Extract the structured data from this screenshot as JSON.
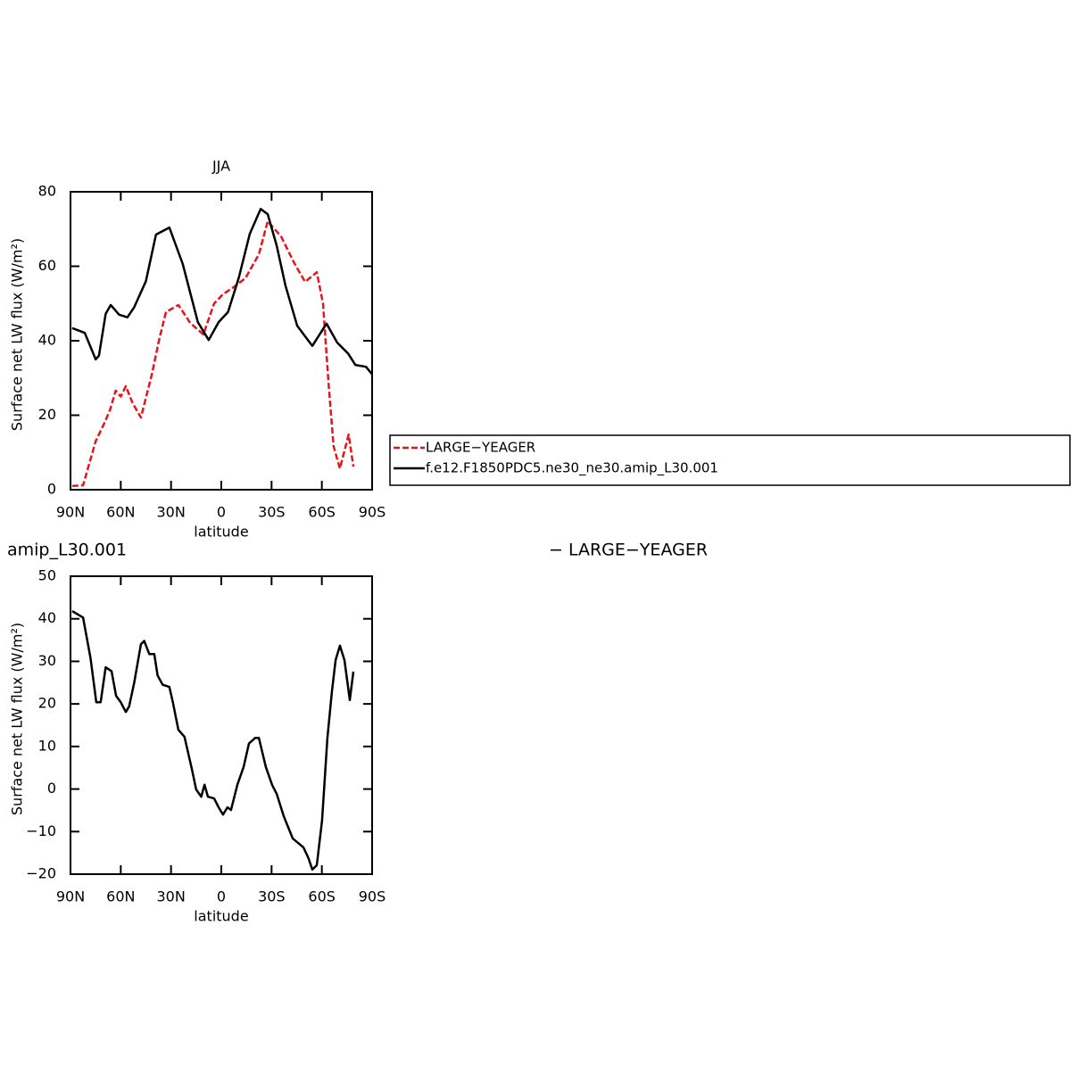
{
  "chart_data": [
    {
      "type": "line",
      "title": "JJA",
      "xlabel": "latitude",
      "ylabel": "Surface net LW flux (W/m²)",
      "xlim": [
        90,
        -90
      ],
      "ylim": [
        0,
        80
      ],
      "xticks": [
        {
          "value": 90,
          "label": "90N"
        },
        {
          "value": 60,
          "label": "60N"
        },
        {
          "value": 30,
          "label": "30N"
        },
        0,
        {
          "value": -30,
          "label": "30S"
        },
        {
          "value": -60,
          "label": "60S"
        },
        {
          "value": -90,
          "label": "90S"
        }
      ],
      "yticks": [
        0,
        20,
        40,
        60,
        80
      ],
      "legend": "right",
      "series": [
        {
          "name": "LARGE−YEAGER",
          "color": "#e8141c",
          "dashed": true,
          "x": [
            89,
            82.5,
            75,
            70,
            66.5,
            63,
            60,
            57,
            53,
            48,
            41.5,
            37,
            33,
            25.6,
            18.6,
            10.7,
            4.3,
            -1,
            -7.4,
            -14.4,
            -22.4,
            -27.7,
            -35.7,
            -43.6,
            -50,
            -57,
            -60.7,
            -64,
            -67,
            -70.8,
            -76,
            -78.8
          ],
          "values": [
            1,
            1.2,
            13,
            17.7,
            21.3,
            26.6,
            25,
            27.8,
            23.3,
            19.4,
            30.9,
            40.5,
            47.7,
            49.6,
            44.8,
            41.7,
            50,
            52.5,
            54.4,
            56.8,
            63.2,
            72.1,
            68,
            60.8,
            55.8,
            58.4,
            50,
            28.5,
            11.7,
            5.7,
            14.8,
            6.2
          ]
        },
        {
          "name": "f.e12.F1850PDC5.ne30_ne30.amip_L30.001",
          "color": "#000000",
          "dashed": false,
          "x": [
            89,
            81.5,
            75,
            73,
            69,
            66,
            61,
            56,
            52,
            45,
            39,
            31,
            23,
            14,
            7.5,
            1.6,
            -4,
            -10.5,
            -17,
            -23.5,
            -27.7,
            -33,
            -38.3,
            -45.3,
            -54.3,
            -62.8,
            -69.2,
            -75.6,
            -80,
            -86.3,
            -90
          ],
          "values": [
            43.4,
            42.1,
            35,
            36,
            47.2,
            49.6,
            47,
            46.3,
            49,
            56,
            68.5,
            70.4,
            60.6,
            45,
            40.2,
            45,
            47.7,
            57,
            68.7,
            75.4,
            74,
            65.6,
            54.8,
            44,
            38.6,
            44.6,
            39.5,
            36.6,
            33.5,
            33,
            31
          ]
        }
      ]
    },
    {
      "type": "line",
      "left_title": "amip_L30.001",
      "right_title": "− LARGE−YEAGER",
      "xlabel": "latitude",
      "ylabel": "Surface net LW flux (W/m²)",
      "xlim": [
        90,
        -90
      ],
      "ylim": [
        -20,
        50
      ],
      "xticks": [
        {
          "value": 90,
          "label": "90N"
        },
        {
          "value": 60,
          "label": "60N"
        },
        {
          "value": 30,
          "label": "30N"
        },
        0,
        {
          "value": -30,
          "label": "30S"
        },
        {
          "value": -60,
          "label": "60S"
        },
        {
          "value": -90,
          "label": "90S"
        }
      ],
      "yticks": [
        {
          "value": -20,
          "label": "−20"
        },
        {
          "value": -10,
          "label": "−10"
        },
        0,
        10,
        20,
        30,
        40,
        50
      ],
      "series": [
        {
          "color": "#000000",
          "dashed": false,
          "x": [
            89,
            82.5,
            78,
            74.6,
            72,
            69,
            65.5,
            62.8,
            60,
            57,
            55,
            52,
            48,
            46,
            43,
            40,
            38,
            35,
            31,
            29,
            25.6,
            22,
            17.6,
            15,
            12,
            10,
            8,
            4.3,
            1.6,
            -1,
            -3.7,
            -5.8,
            -9.6,
            -13.3,
            -16.5,
            -20.2,
            -22.4,
            -26.6,
            -30.3,
            -33,
            -37.3,
            -42.6,
            -49,
            -52,
            -54.3,
            -57,
            -60.1,
            -63.3,
            -66,
            -68.2,
            -70.8,
            -73.5,
            -76.7,
            -78.8
          ],
          "values": [
            41.8,
            40.3,
            30.7,
            20.4,
            20.4,
            28.6,
            27.7,
            21.9,
            20.4,
            18.1,
            19.4,
            25,
            34,
            34.8,
            31.7,
            31.7,
            26.7,
            24.5,
            24,
            20.6,
            13.9,
            12.3,
            4.7,
            -0.1,
            -1.8,
            1,
            -1.8,
            -2.2,
            -4.3,
            -6,
            -4.3,
            -4.9,
            1,
            5.2,
            10.7,
            12,
            12,
            5.2,
            1,
            -1.1,
            -6.4,
            -11.6,
            -13.7,
            -16.2,
            -18.9,
            -17.9,
            -7.4,
            12,
            22.8,
            30.3,
            33.7,
            30.3,
            20.9,
            27.6
          ]
        }
      ]
    }
  ]
}
